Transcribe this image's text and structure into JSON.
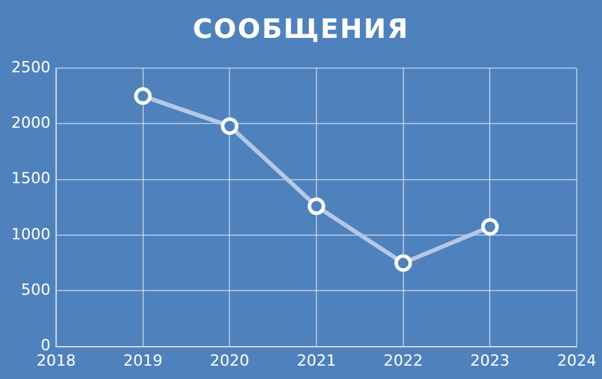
{
  "chart_data": {
    "type": "line",
    "title": "СООБЩЕНИЯ",
    "x": [
      2019,
      2020,
      2021,
      2022,
      2023
    ],
    "series": [
      {
        "color": "#b4c8e6",
        "values": [
          2250,
          1980,
          1260,
          750,
          1075
        ]
      }
    ],
    "xlim": [
      2018,
      2024
    ],
    "xticks": [
      2018,
      2019,
      2020,
      2021,
      2022,
      2023,
      2024
    ],
    "ylim": [
      0,
      2500
    ],
    "yticks": [
      0,
      500,
      1000,
      1500,
      2000,
      2500
    ],
    "grid": true,
    "legend": false,
    "marker": "circle",
    "line_style": "solid"
  }
}
